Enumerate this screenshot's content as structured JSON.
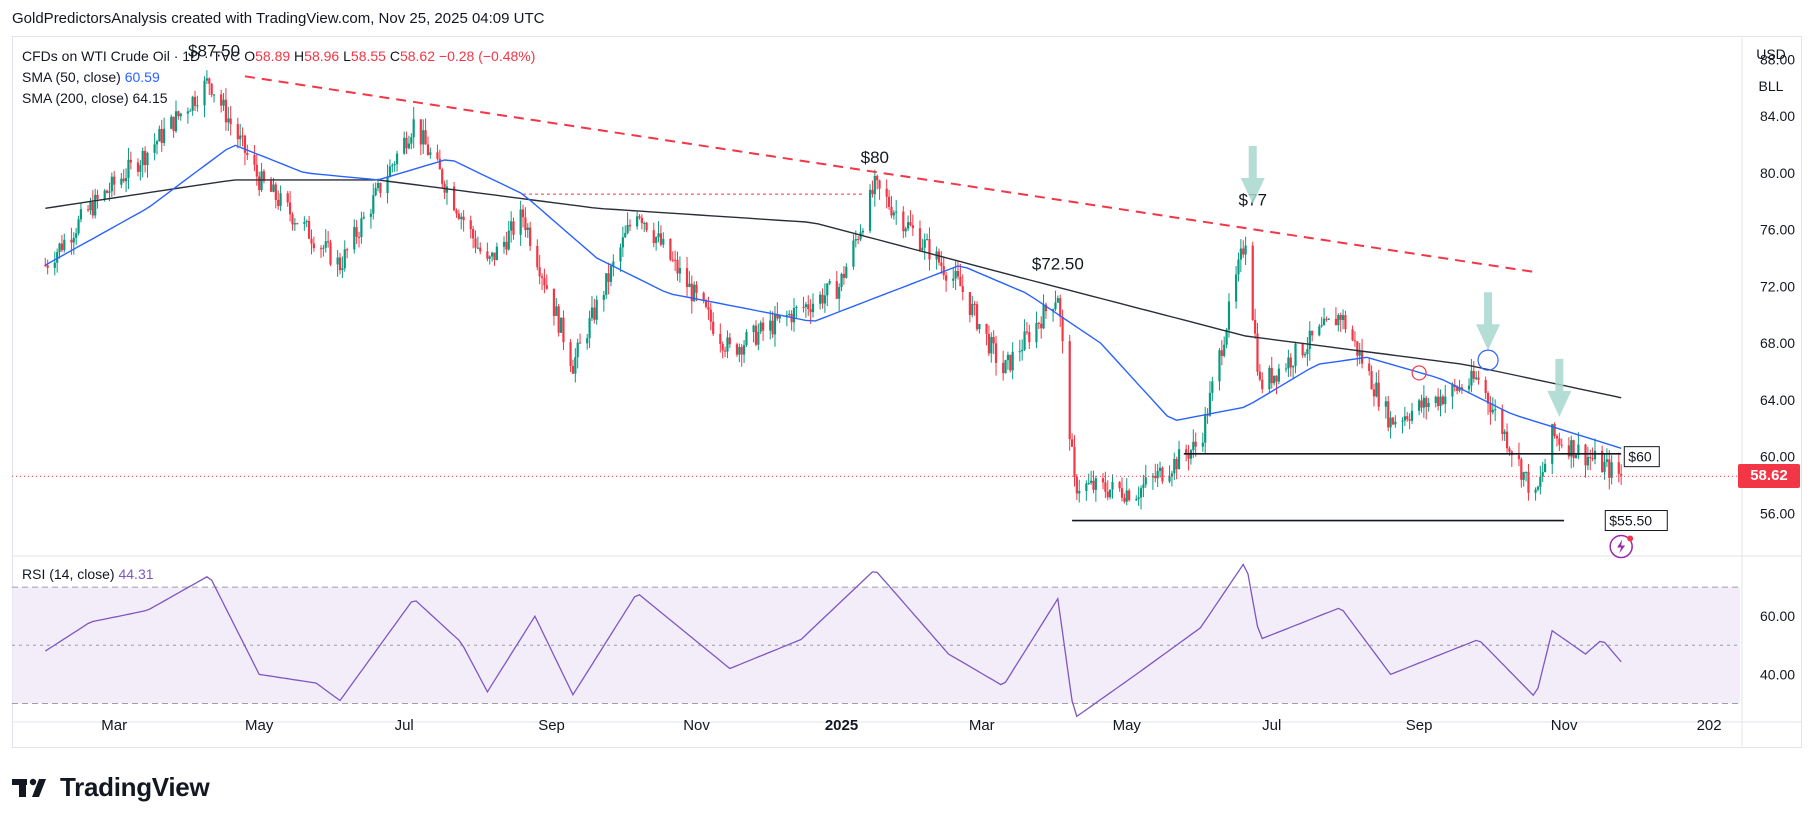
{
  "header": {
    "text": "GoldPredictorsAnalysis created with TradingView.com, Nov 25, 2025 04:09 UTC"
  },
  "legend": {
    "symbol": "CFDs on WTI Crude Oil · 1D · TVC",
    "open_label": "O",
    "open": "58.89",
    "high_label": "H",
    "high": "58.96",
    "low_label": "L",
    "low": "58.55",
    "close_label": "C",
    "close": "58.62",
    "change": "−0.28 (−0.48%)",
    "sma50_label": "SMA (50, close)",
    "sma50_value": "60.59",
    "sma200_label": "SMA (200, close)",
    "sma200_value": "64.15"
  },
  "rsi_legend": {
    "label": "RSI (14, close)",
    "value": "44.31"
  },
  "currency": {
    "unit": "USD",
    "unit2": "BLL"
  },
  "price_badge": "58.62",
  "brand": {
    "name": "TradingView"
  },
  "colors": {
    "up": "#089981",
    "down": "#f23645",
    "sma50": "#2962ff",
    "sma200": "#2a2e39",
    "trendline": "#f23645",
    "rsi": "#7e57c2",
    "rsi_band": "#ede7f6",
    "arrow": "#a7d7cf"
  },
  "chart_data": [
    {
      "type": "candlestick",
      "title": "CFDs on WTI Crude Oil · 1D · TVC",
      "x_axis": {
        "ticks": [
          "Mar",
          "May",
          "Jul",
          "Sep",
          "Nov",
          "2025",
          "Mar",
          "May",
          "Jul",
          "Sep",
          "Nov",
          "202"
        ]
      },
      "y_axis": {
        "range": [
          53,
          89.5
        ],
        "ticks": [
          56,
          60,
          64,
          68,
          72,
          76,
          80,
          84,
          88
        ],
        "tick_labels": [
          "56.00",
          "60.00",
          "64.00",
          "68.00",
          "72.00",
          "76.00",
          "80.00",
          "84.00",
          "88.00"
        ]
      },
      "price_key_points": [
        {
          "x": "2024-02-01",
          "y": 73.5
        },
        {
          "x": "2024-02-20",
          "y": 77.5
        },
        {
          "x": "2024-03-15",
          "y": 81.5
        },
        {
          "x": "2024-04-10",
          "y": 86.5
        },
        {
          "x": "2024-05-01",
          "y": 79.5
        },
        {
          "x": "2024-06-04",
          "y": 73.5
        },
        {
          "x": "2024-07-05",
          "y": 83.5
        },
        {
          "x": "2024-08-05",
          "y": 73.5
        },
        {
          "x": "2024-08-20",
          "y": 77.0
        },
        {
          "x": "2024-09-10",
          "y": 66.5
        },
        {
          "x": "2024-10-07",
          "y": 77.5
        },
        {
          "x": "2024-11-15",
          "y": 67.5
        },
        {
          "x": "2024-12-31",
          "y": 72.0
        },
        {
          "x": "2025-01-15",
          "y": 79.0
        },
        {
          "x": "2025-02-20",
          "y": 72.0
        },
        {
          "x": "2025-03-10",
          "y": 66.0
        },
        {
          "x": "2025-04-02",
          "y": 71.5
        },
        {
          "x": "2025-04-09",
          "y": 58.0
        },
        {
          "x": "2025-05-05",
          "y": 57.5
        },
        {
          "x": "2025-06-01",
          "y": 61.0
        },
        {
          "x": "2025-06-20",
          "y": 75.5
        },
        {
          "x": "2025-06-26",
          "y": 65.0
        },
        {
          "x": "2025-07-30",
          "y": 70.0
        },
        {
          "x": "2025-08-20",
          "y": 62.5
        },
        {
          "x": "2025-09-26",
          "y": 65.5
        },
        {
          "x": "2025-10-20",
          "y": 57.0
        },
        {
          "x": "2025-10-27",
          "y": 61.5
        },
        {
          "x": "2025-11-25",
          "y": 58.62
        }
      ],
      "sma50_points": [
        {
          "x": "2024-02-01",
          "y": 73.5
        },
        {
          "x": "2024-03-15",
          "y": 77.5
        },
        {
          "x": "2024-04-20",
          "y": 82.0
        },
        {
          "x": "2024-05-20",
          "y": 80.0
        },
        {
          "x": "2024-06-20",
          "y": 79.5
        },
        {
          "x": "2024-07-20",
          "y": 81.0
        },
        {
          "x": "2024-08-20",
          "y": 78.5
        },
        {
          "x": "2024-09-20",
          "y": 74.0
        },
        {
          "x": "2024-10-20",
          "y": 71.5
        },
        {
          "x": "2024-11-20",
          "y": 70.5
        },
        {
          "x": "2024-12-20",
          "y": 69.5
        },
        {
          "x": "2025-01-20",
          "y": 71.5
        },
        {
          "x": "2025-02-20",
          "y": 73.5
        },
        {
          "x": "2025-03-20",
          "y": 71.5
        },
        {
          "x": "2025-04-20",
          "y": 68.0
        },
        {
          "x": "2025-05-20",
          "y": 62.5
        },
        {
          "x": "2025-06-20",
          "y": 63.5
        },
        {
          "x": "2025-07-20",
          "y": 66.5
        },
        {
          "x": "2025-08-10",
          "y": 67.0
        },
        {
          "x": "2025-09-10",
          "y": 65.5
        },
        {
          "x": "2025-10-10",
          "y": 63.0
        },
        {
          "x": "2025-11-25",
          "y": 60.59
        }
      ],
      "sma200_points": [
        {
          "x": "2024-02-01",
          "y": 77.5
        },
        {
          "x": "2024-04-20",
          "y": 79.5
        },
        {
          "x": "2024-06-20",
          "y": 79.5
        },
        {
          "x": "2024-09-20",
          "y": 77.5
        },
        {
          "x": "2024-12-20",
          "y": 76.5
        },
        {
          "x": "2025-03-20",
          "y": 72.5
        },
        {
          "x": "2025-06-20",
          "y": 68.5
        },
        {
          "x": "2025-09-20",
          "y": 66.5
        },
        {
          "x": "2025-11-25",
          "y": 64.15
        }
      ],
      "annotations": [
        {
          "text": "$87.50",
          "x": "2024-04-12",
          "y": 87.5
        },
        {
          "text": "$80",
          "x": "2025-01-15",
          "y": 80
        },
        {
          "text": "$72.50",
          "x": "2025-04-02",
          "y": 72.5
        },
        {
          "text": "$77",
          "x": "2025-06-23",
          "y": 77
        },
        {
          "text": "$60",
          "x": "2025-11-28",
          "y": 60
        },
        {
          "text": "$55.50",
          "x": "2025-11-20",
          "y": 55.5
        }
      ],
      "trendline": {
        "from": {
          "x": "2024-04-25",
          "y": 86.8
        },
        "to": {
          "x": "2025-10-20",
          "y": 73.0
        }
      },
      "support_lines": [
        {
          "from": {
            "x": "2025-05-25",
            "y": 60.2
          },
          "to": {
            "x": "2025-11-25",
            "y": 60.2
          }
        },
        {
          "from": {
            "x": "2025-04-08",
            "y": 55.5
          },
          "to": {
            "x": "2025-11-01",
            "y": 55.5
          }
        }
      ],
      "resistance_dotted": {
        "from": {
          "x": "2024-08-20",
          "y": 78.5
        },
        "to": {
          "x": "2025-01-10",
          "y": 78.5
        }
      },
      "current_price": 58.62
    },
    {
      "type": "line",
      "title": "RSI (14, close)",
      "y_axis": {
        "range": [
          25,
          80
        ],
        "ticks": [
          40,
          60
        ],
        "tick_labels": [
          "40.00",
          "60.00"
        ],
        "bands": [
          30,
          50,
          70
        ]
      },
      "points": [
        {
          "x": "2024-02-01",
          "y": 48
        },
        {
          "x": "2024-02-20",
          "y": 58
        },
        {
          "x": "2024-03-15",
          "y": 62
        },
        {
          "x": "2024-04-10",
          "y": 74
        },
        {
          "x": "2024-05-01",
          "y": 40
        },
        {
          "x": "2024-05-25",
          "y": 37
        },
        {
          "x": "2024-06-04",
          "y": 31
        },
        {
          "x": "2024-07-05",
          "y": 66
        },
        {
          "x": "2024-07-25",
          "y": 51
        },
        {
          "x": "2024-08-05",
          "y": 34
        },
        {
          "x": "2024-08-25",
          "y": 60
        },
        {
          "x": "2024-09-10",
          "y": 33
        },
        {
          "x": "2024-10-07",
          "y": 68
        },
        {
          "x": "2024-11-15",
          "y": 42
        },
        {
          "x": "2024-12-15",
          "y": 52
        },
        {
          "x": "2025-01-15",
          "y": 76
        },
        {
          "x": "2025-02-15",
          "y": 47
        },
        {
          "x": "2025-03-10",
          "y": 36
        },
        {
          "x": "2025-04-02",
          "y": 66
        },
        {
          "x": "2025-04-09",
          "y": 25
        },
        {
          "x": "2025-05-05",
          "y": 40
        },
        {
          "x": "2025-06-01",
          "y": 56
        },
        {
          "x": "2025-06-20",
          "y": 79
        },
        {
          "x": "2025-06-26",
          "y": 52
        },
        {
          "x": "2025-07-30",
          "y": 63
        },
        {
          "x": "2025-08-20",
          "y": 40
        },
        {
          "x": "2025-09-26",
          "y": 52
        },
        {
          "x": "2025-10-20",
          "y": 32
        },
        {
          "x": "2025-10-27",
          "y": 55
        },
        {
          "x": "2025-11-10",
          "y": 47
        },
        {
          "x": "2025-11-17",
          "y": 52
        },
        {
          "x": "2025-11-25",
          "y": 44.31
        }
      ]
    }
  ]
}
